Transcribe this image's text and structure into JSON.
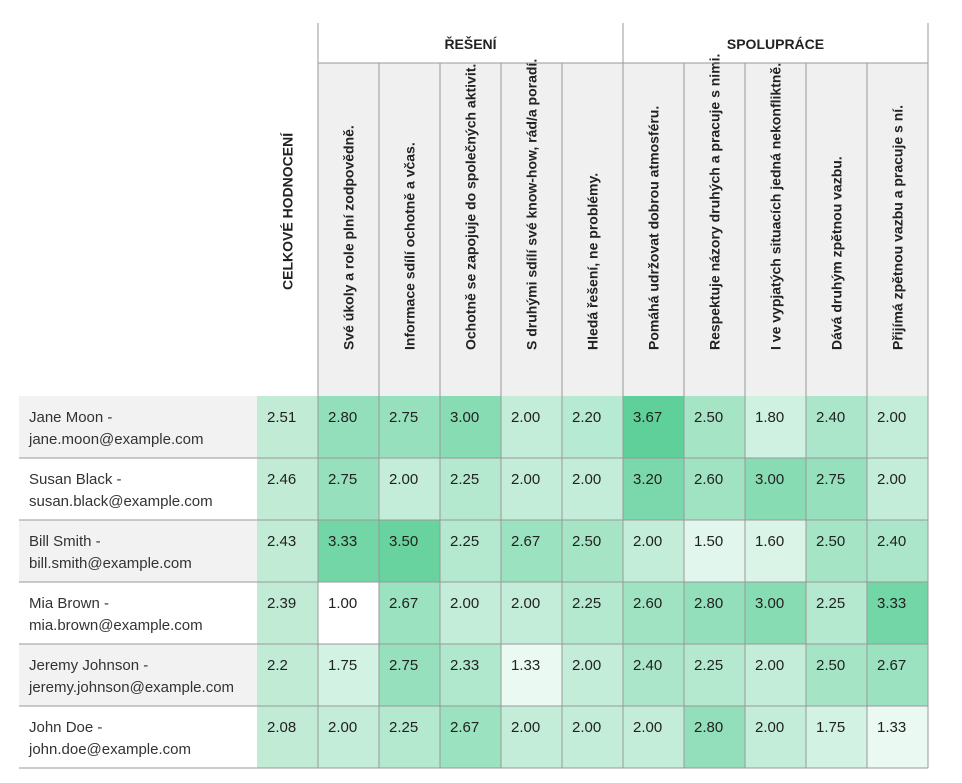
{
  "chart_data": {
    "type": "heatmap",
    "groups": [
      {
        "label": "ŘEŠENÍ",
        "columns": [
          1,
          2,
          3,
          4,
          5
        ]
      },
      {
        "label": "SPOLUPRÁCE",
        "columns": [
          6,
          7,
          8,
          9,
          10
        ]
      }
    ],
    "columns": [
      "CELKOVÉ HODNOCENÍ",
      "Své úkoly a role plní zodpovědně.",
      "Informace sdílí ochotně a včas.",
      "Ochotně se zapojuje do společných aktivit.",
      "S druhými sdílí své know-how, rád/a poradí.",
      "Hledá řešení, ne problémy.",
      "Pomáhá udržovat dobrou atmosféru.",
      "Respektuje názory druhých a pracuje s nimi.",
      "I ve vypjatých situacích jedná nekonfliktně.",
      "Dává druhým zpětnou vazbu.",
      "Přijímá zpětnou vazbu a pracuje s ní."
    ],
    "rows": [
      {
        "name": "Jane Moon -",
        "email": "jane.moon@example.com",
        "values": [
          "2.51",
          "2.80",
          "2.75",
          "3.00",
          "2.00",
          "2.20",
          "3.67",
          "2.50",
          "1.80",
          "2.40",
          "2.00"
        ]
      },
      {
        "name": "Susan Black -",
        "email": "susan.black@example.com",
        "values": [
          "2.46",
          "2.75",
          "2.00",
          "2.25",
          "2.00",
          "2.00",
          "3.20",
          "2.60",
          "3.00",
          "2.75",
          "2.00"
        ]
      },
      {
        "name": "Bill Smith -",
        "email": "bill.smith@example.com",
        "values": [
          "2.43",
          "3.33",
          "3.50",
          "2.25",
          "2.67",
          "2.50",
          "2.00",
          "1.50",
          "1.60",
          "2.50",
          "2.40"
        ]
      },
      {
        "name": "Mia Brown -",
        "email": "mia.brown@example.com",
        "values": [
          "2.39",
          "1.00",
          "2.67",
          "2.00",
          "2.00",
          "2.25",
          "2.60",
          "2.80",
          "3.00",
          "2.25",
          "3.33"
        ]
      },
      {
        "name": "Jeremy Johnson -",
        "email": "jeremy.johnson@example.com",
        "values": [
          "2.2",
          "1.75",
          "2.75",
          "2.33",
          "1.33",
          "2.00",
          "2.40",
          "2.25",
          "2.00",
          "2.50",
          "2.67"
        ]
      },
      {
        "name": "John Doe -",
        "email": "john.doe@example.com",
        "values": [
          "2.08",
          "2.00",
          "2.25",
          "2.67",
          "2.00",
          "2.00",
          "2.00",
          "2.80",
          "2.00",
          "1.75",
          "1.33"
        ]
      }
    ],
    "color_scale": {
      "min": 1.0,
      "max": 3.67,
      "low": "#ffffff",
      "high": "#5fd09a"
    },
    "overall_color": "#c2ebd6",
    "header_bg": "#f0f0f0",
    "row_band_bg": "#f2f2f2",
    "grid_color": "#999999"
  }
}
